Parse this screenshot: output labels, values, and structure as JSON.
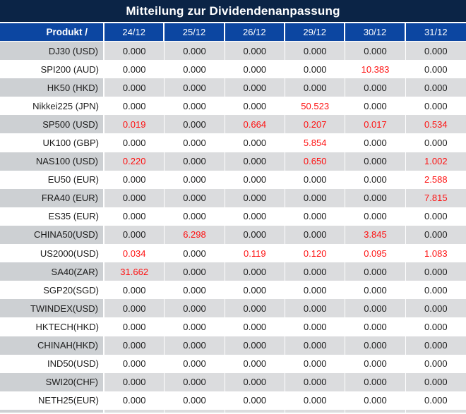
{
  "title": "Mitteilung zur Dividendenanpassung",
  "header": {
    "product_label": "Produkt /",
    "dates": [
      "24/12",
      "25/12",
      "26/12",
      "29/12",
      "30/12",
      "31/12"
    ]
  },
  "colors": {
    "title_bar": "#0b2446",
    "header_bar": "#0c46a1",
    "gray_row_label": "#cdd0d3",
    "gray_row_value": "#dbdcde",
    "value_normal": "#1c1c1c",
    "value_highlight": "#fe1212"
  },
  "rows": [
    {
      "product": "DJ30 (USD)",
      "values": [
        "0.000",
        "0.000",
        "0.000",
        "0.000",
        "0.000",
        "0.000"
      ],
      "red": [
        0,
        0,
        0,
        0,
        0,
        0
      ]
    },
    {
      "product": "SPI200 (AUD)",
      "values": [
        "0.000",
        "0.000",
        "0.000",
        "0.000",
        "10.383",
        "0.000"
      ],
      "red": [
        0,
        0,
        0,
        0,
        1,
        0
      ]
    },
    {
      "product": "HK50 (HKD)",
      "values": [
        "0.000",
        "0.000",
        "0.000",
        "0.000",
        "0.000",
        "0.000"
      ],
      "red": [
        0,
        0,
        0,
        0,
        0,
        0
      ]
    },
    {
      "product": "Nikkei225 (JPN)",
      "values": [
        "0.000",
        "0.000",
        "0.000",
        "50.523",
        "0.000",
        "0.000"
      ],
      "red": [
        0,
        0,
        0,
        1,
        0,
        0
      ]
    },
    {
      "product": "SP500 (USD)",
      "values": [
        "0.019",
        "0.000",
        "0.664",
        "0.207",
        "0.017",
        "0.534"
      ],
      "red": [
        1,
        0,
        1,
        1,
        1,
        1
      ]
    },
    {
      "product": "UK100 (GBP)",
      "values": [
        "0.000",
        "0.000",
        "0.000",
        "5.854",
        "0.000",
        "0.000"
      ],
      "red": [
        0,
        0,
        0,
        1,
        0,
        0
      ]
    },
    {
      "product": "NAS100 (USD)",
      "values": [
        "0.220",
        "0.000",
        "0.000",
        "0.650",
        "0.000",
        "1.002"
      ],
      "red": [
        1,
        0,
        0,
        1,
        0,
        1
      ]
    },
    {
      "product": "EU50 (EUR)",
      "values": [
        "0.000",
        "0.000",
        "0.000",
        "0.000",
        "0.000",
        "2.588"
      ],
      "red": [
        0,
        0,
        0,
        0,
        0,
        1
      ]
    },
    {
      "product": "FRA40 (EUR)",
      "values": [
        "0.000",
        "0.000",
        "0.000",
        "0.000",
        "0.000",
        "7.815"
      ],
      "red": [
        0,
        0,
        0,
        0,
        0,
        1
      ]
    },
    {
      "product": "ES35 (EUR)",
      "values": [
        "0.000",
        "0.000",
        "0.000",
        "0.000",
        "0.000",
        "0.000"
      ],
      "red": [
        0,
        0,
        0,
        0,
        0,
        0
      ]
    },
    {
      "product": "CHINA50(USD)",
      "values": [
        "0.000",
        "6.298",
        "0.000",
        "0.000",
        "3.845",
        "0.000"
      ],
      "red": [
        0,
        1,
        0,
        0,
        1,
        0
      ]
    },
    {
      "product": "US2000(USD)",
      "values": [
        "0.034",
        "0.000",
        "0.119",
        "0.120",
        "0.095",
        "1.083"
      ],
      "red": [
        1,
        0,
        1,
        1,
        1,
        1
      ]
    },
    {
      "product": "SA40(ZAR)",
      "values": [
        "31.662",
        "0.000",
        "0.000",
        "0.000",
        "0.000",
        "0.000"
      ],
      "red": [
        1,
        0,
        0,
        0,
        0,
        0
      ]
    },
    {
      "product": "SGP20(SGD)",
      "values": [
        "0.000",
        "0.000",
        "0.000",
        "0.000",
        "0.000",
        "0.000"
      ],
      "red": [
        0,
        0,
        0,
        0,
        0,
        0
      ]
    },
    {
      "product": "TWINDEX(USD)",
      "values": [
        "0.000",
        "0.000",
        "0.000",
        "0.000",
        "0.000",
        "0.000"
      ],
      "red": [
        0,
        0,
        0,
        0,
        0,
        0
      ]
    },
    {
      "product": "HKTECH(HKD)",
      "values": [
        "0.000",
        "0.000",
        "0.000",
        "0.000",
        "0.000",
        "0.000"
      ],
      "red": [
        0,
        0,
        0,
        0,
        0,
        0
      ]
    },
    {
      "product": "CHINAH(HKD)",
      "values": [
        "0.000",
        "0.000",
        "0.000",
        "0.000",
        "0.000",
        "0.000"
      ],
      "red": [
        0,
        0,
        0,
        0,
        0,
        0
      ]
    },
    {
      "product": "IND50(USD)",
      "values": [
        "0.000",
        "0.000",
        "0.000",
        "0.000",
        "0.000",
        "0.000"
      ],
      "red": [
        0,
        0,
        0,
        0,
        0,
        0
      ]
    },
    {
      "product": "SWI20(CHF)",
      "values": [
        "0.000",
        "0.000",
        "0.000",
        "0.000",
        "0.000",
        "0.000"
      ],
      "red": [
        0,
        0,
        0,
        0,
        0,
        0
      ]
    },
    {
      "product": "NETH25(EUR)",
      "values": [
        "0.000",
        "0.000",
        "0.000",
        "0.000",
        "0.000",
        "0.000"
      ],
      "red": [
        0,
        0,
        0,
        0,
        0,
        0
      ]
    }
  ]
}
